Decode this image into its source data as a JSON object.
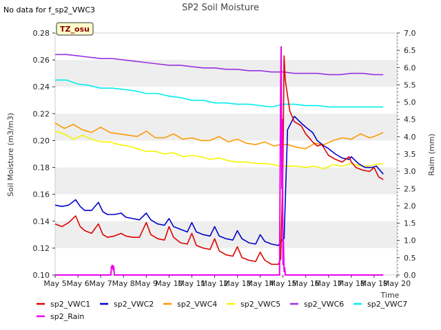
{
  "header": {
    "title": "SP2 Soil Moisture",
    "no_data_note": "No data for f_sp2_VWC3",
    "tz_badge": "TZ_osu"
  },
  "colors": {
    "sp2_VWC1": "#dd0000",
    "sp2_VWC2": "#0000cc",
    "sp2_VWC4": "#ff9900",
    "sp2_VWC5": "#f5f500",
    "sp2_VWC6": "#9a30e0",
    "sp2_VWC7": "#00eeee",
    "sp2_Rain": "#ee00ee",
    "band": "#eeeeee",
    "tz_fill": "#ffffcc"
  },
  "chart_data": {
    "type": "line",
    "title": "SP2 Soil Moisture",
    "xlabel": "Time",
    "ylabel": "Soil Moisture (m3/m3)",
    "y2label": "Raim (mm)",
    "x_ticks": [
      "May 5",
      "May 6",
      "May 7",
      "May 8",
      "May 9",
      "May 10",
      "May 11",
      "May 12",
      "May 13",
      "May 14",
      "May 15",
      "May 16",
      "May 17",
      "May 18",
      "May 19",
      "May 20"
    ],
    "xlim": [
      5,
      20
    ],
    "ylim": [
      0.1,
      0.28
    ],
    "y_ticks": [
      "0.10",
      "0.12",
      "0.14",
      "0.16",
      "0.18",
      "0.20",
      "0.22",
      "0.24",
      "0.26",
      "0.28"
    ],
    "y2lim": [
      0,
      7
    ],
    "y2_ticks": [
      "0.0",
      "0.5",
      "1.0",
      "1.5",
      "2.0",
      "2.5",
      "3.0",
      "3.5",
      "4.0",
      "4.5",
      "5.0",
      "5.5",
      "6.0",
      "6.5",
      "7.0"
    ],
    "grid": "horizontal bands",
    "legend_position": "bottom",
    "series": [
      {
        "name": "sp2_VWC1",
        "axis": "left",
        "x": [
          5.0,
          5.3,
          5.6,
          5.9,
          6.1,
          6.3,
          6.6,
          6.9,
          7.1,
          7.3,
          7.6,
          7.9,
          8.1,
          8.4,
          8.7,
          9.0,
          9.2,
          9.5,
          9.8,
          10.0,
          10.2,
          10.5,
          10.8,
          11.0,
          11.2,
          11.5,
          11.8,
          12.0,
          12.2,
          12.5,
          12.8,
          13.0,
          13.2,
          13.5,
          13.8,
          14.0,
          14.2,
          14.5,
          14.8,
          14.9,
          15.0,
          15.05,
          15.1,
          15.3,
          15.5,
          15.8,
          16.0,
          16.3,
          16.5,
          16.7,
          17.0,
          17.3,
          17.6,
          17.9,
          18.0,
          18.2,
          18.5,
          18.8,
          19.0,
          19.2,
          19.4
        ],
        "values": [
          0.138,
          0.136,
          0.139,
          0.144,
          0.136,
          0.133,
          0.131,
          0.138,
          0.13,
          0.128,
          0.129,
          0.131,
          0.129,
          0.128,
          0.128,
          0.139,
          0.13,
          0.127,
          0.126,
          0.136,
          0.128,
          0.124,
          0.123,
          0.131,
          0.122,
          0.12,
          0.119,
          0.127,
          0.118,
          0.115,
          0.114,
          0.121,
          0.113,
          0.111,
          0.11,
          0.117,
          0.111,
          0.108,
          0.108,
          0.112,
          0.182,
          0.263,
          0.245,
          0.222,
          0.214,
          0.211,
          0.205,
          0.199,
          0.196,
          0.197,
          0.189,
          0.186,
          0.184,
          0.188,
          0.184,
          0.18,
          0.178,
          0.177,
          0.18,
          0.173,
          0.171
        ]
      },
      {
        "name": "sp2_VWC2",
        "axis": "left",
        "x": [
          5.0,
          5.3,
          5.6,
          5.9,
          6.1,
          6.3,
          6.6,
          6.9,
          7.1,
          7.3,
          7.6,
          7.9,
          8.1,
          8.4,
          8.7,
          9.0,
          9.2,
          9.5,
          9.8,
          10.0,
          10.2,
          10.5,
          10.8,
          11.0,
          11.2,
          11.5,
          11.8,
          12.0,
          12.2,
          12.5,
          12.8,
          13.0,
          13.2,
          13.5,
          13.8,
          14.0,
          14.2,
          14.5,
          14.8,
          14.95,
          15.05,
          15.2,
          15.5,
          15.8,
          16.0,
          16.3,
          16.5,
          16.8,
          17.0,
          17.3,
          17.6,
          17.9,
          18.0,
          18.3,
          18.6,
          18.9,
          19.1,
          19.3,
          19.4
        ],
        "values": [
          0.152,
          0.151,
          0.152,
          0.156,
          0.151,
          0.148,
          0.148,
          0.154,
          0.147,
          0.145,
          0.145,
          0.146,
          0.143,
          0.142,
          0.141,
          0.146,
          0.141,
          0.138,
          0.137,
          0.142,
          0.136,
          0.134,
          0.132,
          0.139,
          0.132,
          0.13,
          0.129,
          0.136,
          0.129,
          0.127,
          0.126,
          0.133,
          0.127,
          0.124,
          0.123,
          0.13,
          0.125,
          0.123,
          0.122,
          0.126,
          0.127,
          0.208,
          0.218,
          0.213,
          0.21,
          0.206,
          0.2,
          0.196,
          0.194,
          0.19,
          0.187,
          0.186,
          0.188,
          0.183,
          0.18,
          0.18,
          0.181,
          0.177,
          0.175
        ]
      },
      {
        "name": "sp2_VWC4",
        "axis": "left",
        "x": [
          5.0,
          5.4,
          5.8,
          6.2,
          6.6,
          7.0,
          7.4,
          7.8,
          8.2,
          8.6,
          9.0,
          9.4,
          9.8,
          10.2,
          10.6,
          11.0,
          11.4,
          11.8,
          12.2,
          12.6,
          13.0,
          13.4,
          13.8,
          14.2,
          14.6,
          14.9,
          15.2,
          15.6,
          16.0,
          16.4,
          16.8,
          17.2,
          17.6,
          18.0,
          18.4,
          18.8,
          19.0,
          19.4
        ],
        "values": [
          0.213,
          0.209,
          0.212,
          0.208,
          0.206,
          0.21,
          0.206,
          0.205,
          0.204,
          0.203,
          0.207,
          0.202,
          0.202,
          0.205,
          0.201,
          0.202,
          0.2,
          0.2,
          0.203,
          0.199,
          0.201,
          0.198,
          0.197,
          0.199,
          0.196,
          0.197,
          0.197,
          0.195,
          0.194,
          0.198,
          0.197,
          0.2,
          0.202,
          0.201,
          0.205,
          0.202,
          0.203,
          0.206
        ]
      },
      {
        "name": "sp2_VWC5",
        "axis": "left",
        "x": [
          5.0,
          5.4,
          5.8,
          6.2,
          6.6,
          7.0,
          7.4,
          7.8,
          8.2,
          8.6,
          9.0,
          9.4,
          9.8,
          10.2,
          10.6,
          11.0,
          11.4,
          11.8,
          12.2,
          12.6,
          13.0,
          13.4,
          13.8,
          14.2,
          14.6,
          14.9,
          15.2,
          15.6,
          16.0,
          16.4,
          16.8,
          17.2,
          17.6,
          18.0,
          18.4,
          18.8,
          19.0,
          19.4
        ],
        "values": [
          0.207,
          0.205,
          0.201,
          0.204,
          0.201,
          0.199,
          0.199,
          0.197,
          0.196,
          0.194,
          0.192,
          0.192,
          0.19,
          0.191,
          0.188,
          0.189,
          0.188,
          0.186,
          0.187,
          0.185,
          0.184,
          0.184,
          0.183,
          0.183,
          0.182,
          0.181,
          0.181,
          0.181,
          0.18,
          0.181,
          0.179,
          0.182,
          0.181,
          0.183,
          0.181,
          0.181,
          0.182,
          0.183
        ]
      },
      {
        "name": "sp2_VWC6",
        "axis": "left",
        "x": [
          5.0,
          5.5,
          6.0,
          6.5,
          7.0,
          7.5,
          8.0,
          8.5,
          9.0,
          9.5,
          10.0,
          10.5,
          11.0,
          11.5,
          12.0,
          12.5,
          13.0,
          13.5,
          14.0,
          14.5,
          15.0,
          15.5,
          16.0,
          16.5,
          17.0,
          17.5,
          18.0,
          18.5,
          19.0,
          19.4
        ],
        "values": [
          0.264,
          0.264,
          0.263,
          0.262,
          0.261,
          0.261,
          0.26,
          0.259,
          0.258,
          0.257,
          0.256,
          0.256,
          0.255,
          0.254,
          0.254,
          0.253,
          0.253,
          0.252,
          0.252,
          0.251,
          0.251,
          0.25,
          0.25,
          0.25,
          0.249,
          0.249,
          0.25,
          0.25,
          0.249,
          0.249
        ]
      },
      {
        "name": "sp2_VWC7",
        "axis": "left",
        "x": [
          5.0,
          5.5,
          6.0,
          6.5,
          7.0,
          7.5,
          8.0,
          8.5,
          9.0,
          9.5,
          10.0,
          10.5,
          11.0,
          11.5,
          12.0,
          12.5,
          13.0,
          13.5,
          14.0,
          14.5,
          15.0,
          15.5,
          16.0,
          16.5,
          17.0,
          17.5,
          18.0,
          18.5,
          19.0,
          19.4
        ],
        "values": [
          0.245,
          0.245,
          0.242,
          0.241,
          0.239,
          0.239,
          0.238,
          0.237,
          0.235,
          0.235,
          0.233,
          0.232,
          0.23,
          0.23,
          0.228,
          0.228,
          0.227,
          0.227,
          0.226,
          0.225,
          0.227,
          0.227,
          0.226,
          0.226,
          0.225,
          0.225,
          0.225,
          0.225,
          0.225,
          0.225
        ]
      },
      {
        "name": "sp2_Rain",
        "axis": "right",
        "x": [
          5.0,
          7.45,
          7.47,
          7.5,
          7.52,
          7.55,
          7.57,
          7.6,
          14.85,
          14.88,
          14.9,
          14.92,
          14.95,
          14.97,
          15.0,
          15.02,
          15.05,
          15.08,
          15.1,
          19.4
        ],
        "values": [
          0,
          0,
          0.25,
          0.2,
          0.28,
          0.15,
          0.25,
          0,
          0,
          3.5,
          5.5,
          6.6,
          2.5,
          4.5,
          0.3,
          1.0,
          0.1,
          0.2,
          0,
          0
        ]
      }
    ]
  },
  "legend": [
    {
      "label": "sp2_VWC1"
    },
    {
      "label": "sp2_VWC2"
    },
    {
      "label": "sp2_VWC4"
    },
    {
      "label": "sp2_VWC5"
    },
    {
      "label": "sp2_VWC6"
    },
    {
      "label": "sp2_VWC7"
    },
    {
      "label": "sp2_Rain"
    }
  ]
}
